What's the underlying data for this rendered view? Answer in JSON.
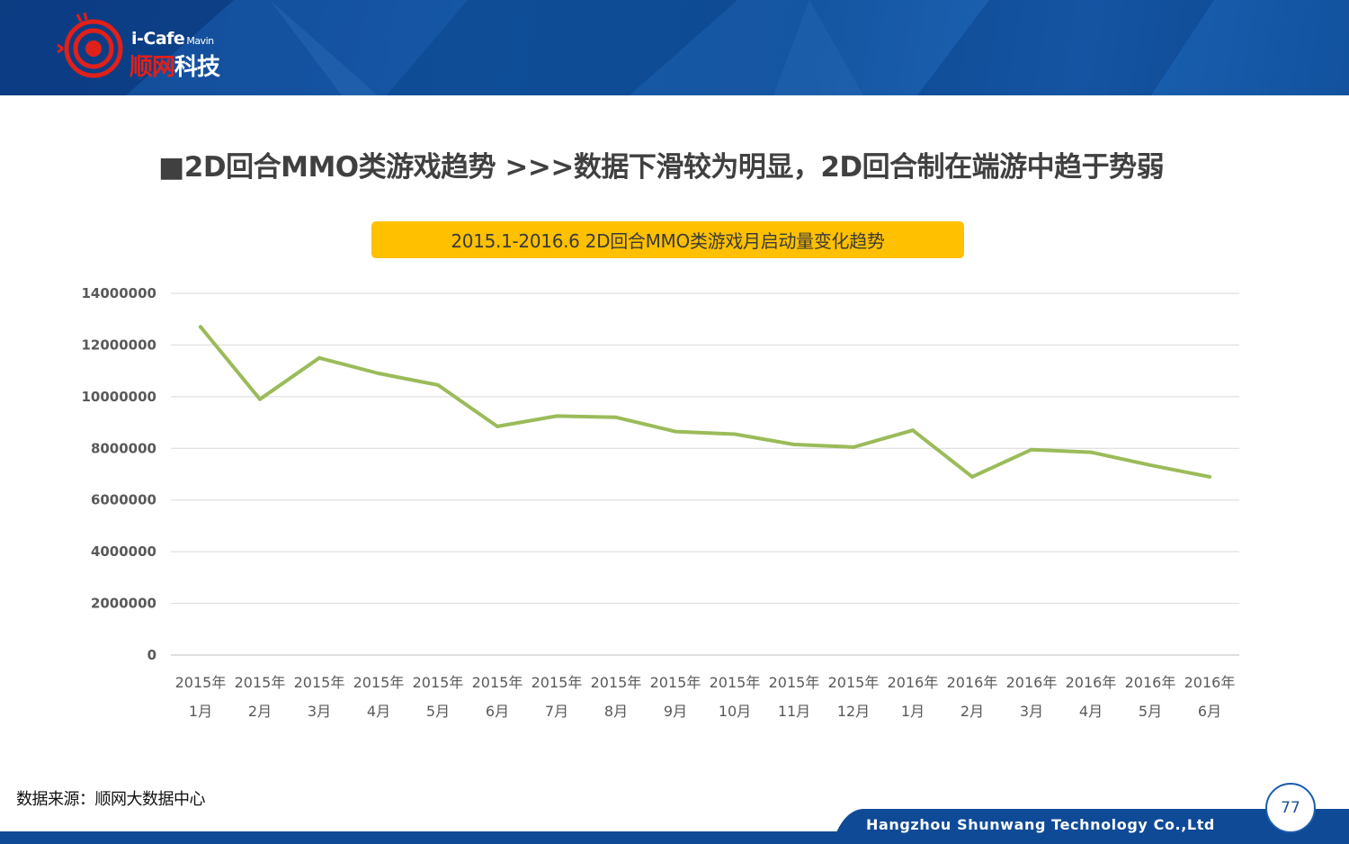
{
  "header": {
    "logo_brand": "i-Cafe",
    "logo_sub": "Mavin",
    "logo_cn_red": "顺网",
    "logo_cn_white": "科技"
  },
  "title": "■2D回合MMO类游戏趋势    >>>数据下滑较为明显，2D回合制在端游中趋于势弱",
  "source": "数据来源：顺网大数据中心",
  "footer": {
    "company": "Hangzhou Shunwang Technology Co.,Ltd",
    "page_number": "77"
  },
  "colors": {
    "line": "#9bbb59",
    "title_pill": "#ffc000",
    "header_blue": "#12539f"
  },
  "chart_data": {
    "type": "line",
    "title": "2015.1-2016.6 2D回合MMO类游戏月启动量变化趋势",
    "categories": [
      [
        "2015年",
        "1月"
      ],
      [
        "2015年",
        "2月"
      ],
      [
        "2015年",
        "3月"
      ],
      [
        "2015年",
        "4月"
      ],
      [
        "2015年",
        "5月"
      ],
      [
        "2015年",
        "6月"
      ],
      [
        "2015年",
        "7月"
      ],
      [
        "2015年",
        "8月"
      ],
      [
        "2015年",
        "9月"
      ],
      [
        "2015年",
        "10月"
      ],
      [
        "2015年",
        "11月"
      ],
      [
        "2015年",
        "12月"
      ],
      [
        "2016年",
        "1月"
      ],
      [
        "2016年",
        "2月"
      ],
      [
        "2016年",
        "3月"
      ],
      [
        "2016年",
        "4月"
      ],
      [
        "2016年",
        "5月"
      ],
      [
        "2016年",
        "6月"
      ]
    ],
    "series": [
      {
        "values": [
          12700000,
          9900000,
          11500000,
          10900000,
          10450000,
          8850000,
          9250000,
          9200000,
          8650000,
          8550000,
          8150000,
          8050000,
          8700000,
          6900000,
          7950000,
          7850000,
          7350000,
          6900000
        ]
      }
    ],
    "ylim": [
      0,
      14000000
    ],
    "yticks": [
      "0",
      "2000000",
      "4000000",
      "6000000",
      "8000000",
      "10000000",
      "12000000",
      "14000000"
    ],
    "grid": true,
    "legend": "none"
  }
}
